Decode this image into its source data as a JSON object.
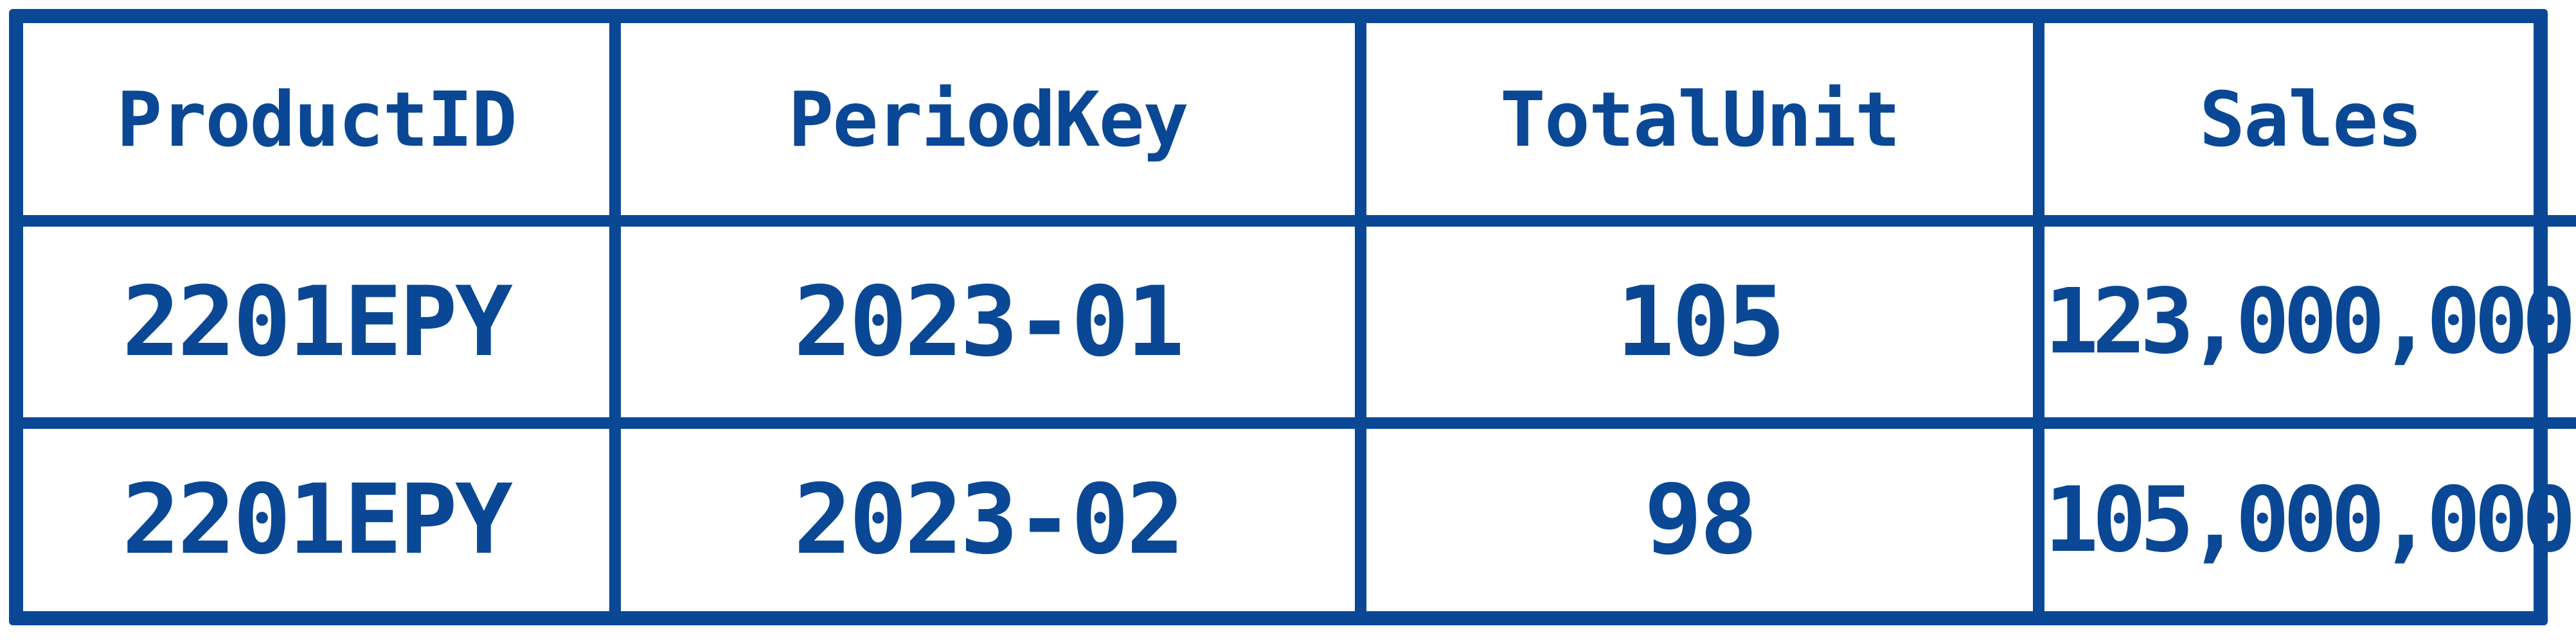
{
  "table": {
    "headers": [
      "ProductID",
      "PeriodKey",
      "TotalUnit",
      "Sales"
    ],
    "rows": [
      [
        "2201EPY",
        "2023-01",
        "105",
        "123,000,000"
      ],
      [
        "2201EPY",
        "2023-02",
        "98",
        "105,000,000"
      ]
    ]
  },
  "colors": {
    "ink": "#0a4896",
    "paper": "#ffffff"
  }
}
